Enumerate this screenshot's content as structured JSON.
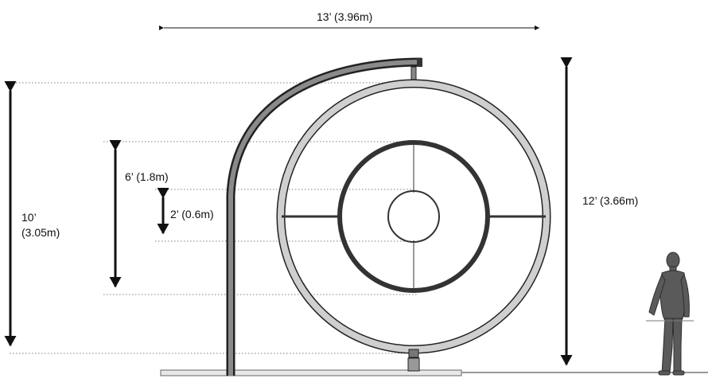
{
  "dimensions": {
    "width_label": "13’ (3.96m)",
    "height_label": "12’ (3.66m)",
    "total_height_label_line1": "10’",
    "total_height_label_line2": "(3.05m)",
    "outer_ring_label": "6’ (1.8m)",
    "inner_ring_label": "2’ (0.6m)"
  },
  "colors": {
    "line": "#111111",
    "structure": "#333333",
    "ring_fill": "#cfcfcf",
    "figure": "#555555",
    "ground": "#e6e6e6"
  }
}
